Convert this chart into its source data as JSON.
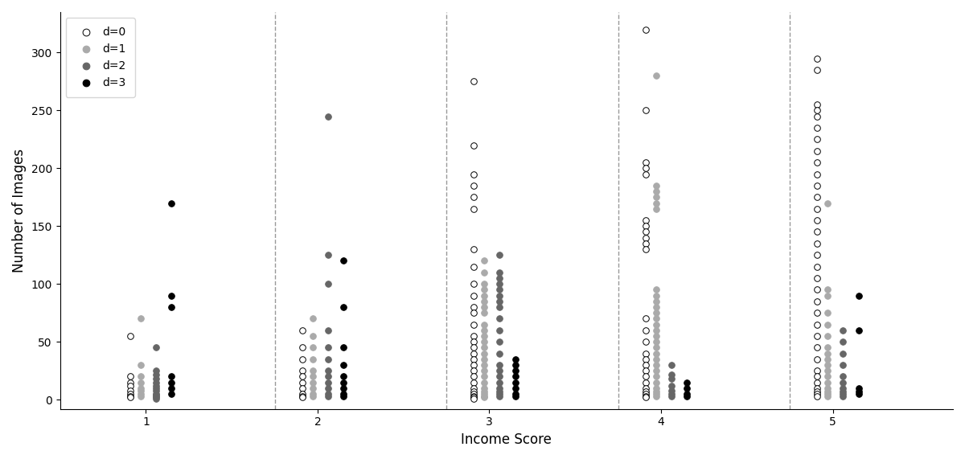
{
  "title": "",
  "xlabel": "Income Score",
  "ylabel": "Number of Images",
  "xlim": [
    0.5,
    5.7
  ],
  "ylim": [
    -8,
    335
  ],
  "colors": {
    "d0": "white",
    "d1": "#aaaaaa",
    "d2": "#666666",
    "d3": "black"
  },
  "edgecolors": {
    "d0": "black",
    "d1": "#aaaaaa",
    "d2": "#666666",
    "d3": "black"
  },
  "vlines": [
    1.75,
    2.75,
    3.75,
    4.75
  ],
  "marker_size": 30,
  "income_scores": [
    1,
    2,
    3,
    4,
    5
  ],
  "x_offsets": {
    "d0": -0.09,
    "d1": -0.03,
    "d2": 0.06,
    "d3": 0.15
  },
  "data": {
    "1": {
      "d0": [
        55,
        20,
        15,
        12,
        8,
        5,
        3,
        2
      ],
      "d1": [
        70,
        30,
        20,
        15,
        10,
        8,
        5,
        3
      ],
      "d2": [
        45,
        25,
        22,
        18,
        15,
        12,
        10,
        8,
        5,
        4,
        3,
        2,
        1
      ],
      "d3": [
        170,
        90,
        80,
        20,
        15,
        10,
        5
      ]
    },
    "2": {
      "d0": [
        60,
        45,
        35,
        25,
        20,
        15,
        10,
        5,
        3,
        2
      ],
      "d1": [
        70,
        55,
        45,
        35,
        25,
        20,
        15,
        10,
        5,
        3
      ],
      "d2": [
        245,
        125,
        100,
        60,
        45,
        35,
        25,
        20,
        15,
        10,
        5,
        3
      ],
      "d3": [
        120,
        80,
        45,
        30,
        20,
        15,
        10,
        5,
        3
      ]
    },
    "3": {
      "d0": [
        275,
        220,
        195,
        185,
        175,
        165,
        130,
        115,
        100,
        90,
        80,
        75,
        65,
        55,
        50,
        45,
        40,
        35,
        30,
        25,
        20,
        15,
        10,
        7,
        5,
        3,
        2,
        1
      ],
      "d1": [
        120,
        110,
        100,
        95,
        90,
        85,
        80,
        75,
        65,
        60,
        55,
        50,
        45,
        40,
        35,
        30,
        25,
        20,
        15,
        10,
        7,
        5,
        3,
        2
      ],
      "d2": [
        125,
        110,
        105,
        100,
        95,
        90,
        85,
        80,
        70,
        60,
        50,
        40,
        30,
        25,
        20,
        15,
        10,
        7,
        5,
        3
      ],
      "d3": [
        35,
        30,
        25,
        20,
        15,
        10,
        5,
        3
      ]
    },
    "4": {
      "d0": [
        320,
        250,
        205,
        200,
        195,
        155,
        150,
        145,
        140,
        135,
        130,
        70,
        60,
        50,
        40,
        35,
        30,
        25,
        20,
        15,
        10,
        7,
        5,
        3,
        2
      ],
      "d1": [
        280,
        185,
        180,
        175,
        170,
        165,
        95,
        90,
        85,
        80,
        75,
        70,
        65,
        60,
        55,
        50,
        45,
        40,
        35,
        30,
        25,
        20,
        15,
        10,
        7,
        5,
        3
      ],
      "d2": [
        30,
        22,
        18,
        12,
        8,
        5,
        3
      ],
      "d3": [
        15,
        10,
        5,
        3
      ]
    },
    "5": {
      "d0": [
        295,
        285,
        255,
        250,
        245,
        235,
        225,
        215,
        205,
        195,
        185,
        175,
        165,
        155,
        145,
        135,
        125,
        115,
        105,
        95,
        85,
        75,
        65,
        55,
        45,
        35,
        25,
        20,
        15,
        10,
        7,
        5,
        3
      ],
      "d1": [
        170,
        95,
        90,
        75,
        65,
        55,
        45,
        40,
        35,
        30,
        25,
        20,
        15,
        10,
        7,
        5,
        3
      ],
      "d2": [
        60,
        50,
        40,
        30,
        20,
        15,
        10,
        7,
        5,
        3
      ],
      "d3": [
        90,
        60,
        10,
        7,
        5
      ]
    }
  }
}
